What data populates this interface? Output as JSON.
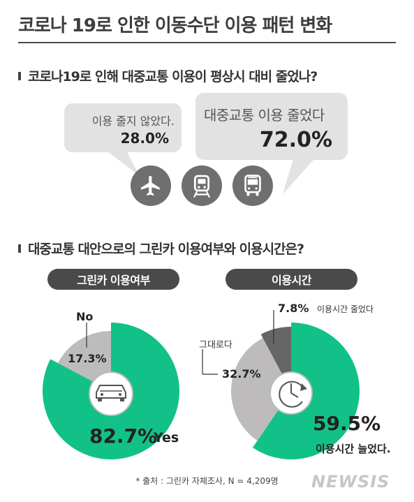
{
  "title": "코로나 19로 인한 이동수단 이용 패턴 변화",
  "section1": {
    "question": "코로나19로 인해 대중교통 이용이 평상시 대비 줄었나?",
    "bubble_no_label": "이용 줄지 않았다.",
    "bubble_no_value": "28.0%",
    "bubble_yes_label": "대중교통 이용 줄었다",
    "bubble_yes_value": "72.0%",
    "icons": [
      "airplane-icon",
      "train-icon",
      "bus-icon"
    ]
  },
  "section2": {
    "question": "대중교통 대안으로의 그린카 이용여부와 이용시간은?"
  },
  "colors": {
    "green": "#12c188",
    "gray": "#bdbbbb",
    "dark": "#666666",
    "pill": "#4a4a4a"
  },
  "chart_data": [
    {
      "type": "pie",
      "title": "그린카 이용여부",
      "slices": [
        {
          "label": "Yes",
          "value": 82.7,
          "display": "82.7%"
        },
        {
          "label": "No",
          "value": 17.3,
          "display": "17.3%"
        }
      ]
    },
    {
      "type": "pie",
      "title": "이용시간",
      "slices": [
        {
          "label": "이용시간 늘었다.",
          "value": 59.5,
          "display": "59.5%"
        },
        {
          "label": "그대로다",
          "value": 32.7,
          "display": "32.7%"
        },
        {
          "label": "이용시간 줄었다",
          "value": 7.8,
          "display": "7.8%"
        }
      ]
    }
  ],
  "source": "* 출처 : 그린카 자체조사, N = 4,209명",
  "watermark": "NEWSIS"
}
